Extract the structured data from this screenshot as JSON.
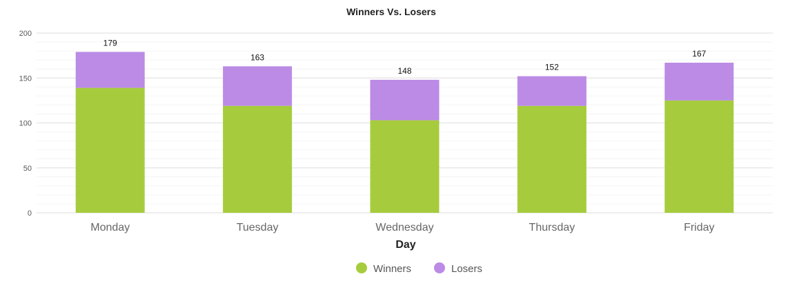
{
  "chart_data": {
    "type": "bar",
    "stacked": true,
    "title": "Winners Vs. Losers",
    "xlabel": "Day",
    "ylabel": "",
    "categories": [
      "Monday",
      "Tuesday",
      "Wednesday",
      "Thursday",
      "Friday"
    ],
    "series": [
      {
        "name": "Winners",
        "values": [
          139,
          119,
          103,
          119,
          125
        ],
        "color": "#a6cc3d"
      },
      {
        "name": "Losers",
        "values": [
          40,
          44,
          45,
          33,
          42
        ],
        "color": "#bb8be5"
      }
    ],
    "totals": [
      179,
      163,
      148,
      152,
      167
    ],
    "ylim": [
      0,
      200
    ],
    "yticks": [
      0,
      50,
      100,
      150,
      200
    ],
    "grid": true,
    "legend_position": "bottom"
  }
}
